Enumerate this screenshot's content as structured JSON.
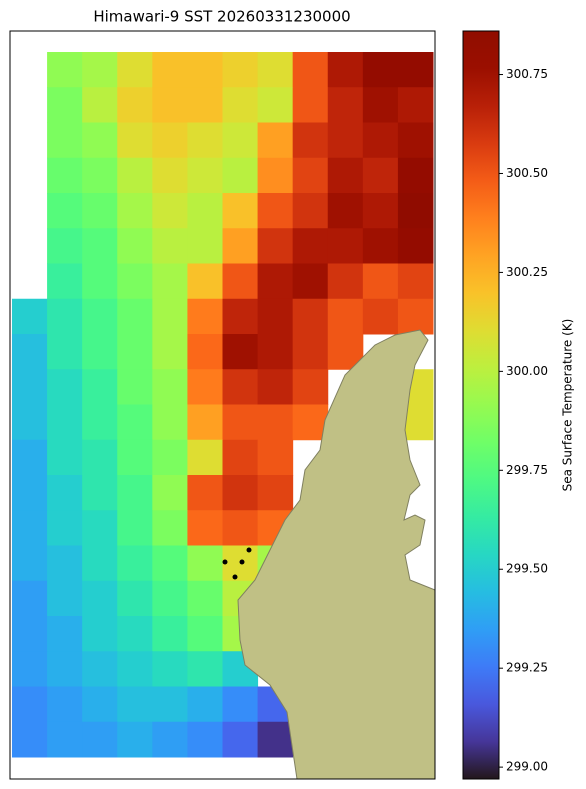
{
  "chart_data": {
    "type": "heatmap",
    "title": "Himawari-9 SST 20260331230000",
    "cmap": "turbo",
    "rows": [
      [
        null,
        299.9,
        299.95,
        300.1,
        300.2,
        300.2,
        300.15,
        300.1,
        300.5,
        300.7,
        300.8,
        300.8
      ],
      [
        null,
        299.85,
        300.0,
        300.15,
        300.2,
        300.2,
        300.1,
        300.05,
        300.5,
        300.65,
        300.75,
        300.7
      ],
      [
        null,
        299.85,
        299.9,
        300.1,
        300.15,
        300.1,
        300.05,
        300.3,
        300.6,
        300.65,
        300.7,
        300.75
      ],
      [
        null,
        299.8,
        299.85,
        300.0,
        300.1,
        300.05,
        300.0,
        300.35,
        300.55,
        300.7,
        300.65,
        300.8
      ],
      [
        null,
        299.75,
        299.8,
        299.95,
        300.05,
        300.0,
        300.2,
        300.5,
        300.6,
        300.75,
        300.7,
        300.85
      ],
      [
        null,
        299.7,
        299.75,
        299.9,
        300.0,
        300.0,
        300.3,
        300.6,
        300.7,
        300.7,
        300.75,
        300.8
      ],
      [
        null,
        299.65,
        299.75,
        299.85,
        299.95,
        300.2,
        300.5,
        300.7,
        300.75,
        300.6,
        300.5,
        300.55
      ],
      [
        299.5,
        299.6,
        299.7,
        299.8,
        299.95,
        300.4,
        300.65,
        300.7,
        300.6,
        300.5,
        300.55,
        300.5
      ],
      [
        299.45,
        299.6,
        299.7,
        299.8,
        299.95,
        300.45,
        300.75,
        300.7,
        300.6,
        300.5,
        null,
        null
      ],
      [
        299.45,
        299.55,
        299.65,
        299.8,
        299.9,
        300.4,
        300.6,
        300.65,
        300.55,
        null,
        null,
        300.1
      ],
      [
        299.45,
        299.55,
        299.65,
        299.75,
        299.9,
        300.3,
        300.5,
        300.5,
        300.45,
        null,
        null,
        300.1
      ],
      [
        299.4,
        299.55,
        299.6,
        299.75,
        299.85,
        300.1,
        300.55,
        300.5,
        null,
        null,
        null,
        null
      ],
      [
        299.4,
        299.5,
        299.6,
        299.7,
        299.9,
        300.5,
        300.6,
        300.55,
        null,
        null,
        null,
        null
      ],
      [
        299.4,
        299.5,
        299.55,
        299.7,
        299.85,
        300.45,
        300.5,
        300.45,
        null,
        null,
        null,
        null
      ],
      [
        299.4,
        299.45,
        299.55,
        299.65,
        299.75,
        299.9,
        300.1,
        299.95,
        null,
        null,
        null,
        null
      ],
      [
        299.35,
        299.45,
        299.5,
        299.6,
        299.7,
        299.8,
        300.0,
        null,
        null,
        null,
        null,
        null
      ],
      [
        299.35,
        299.4,
        299.5,
        299.55,
        299.65,
        299.75,
        299.95,
        null,
        null,
        null,
        null,
        null
      ],
      [
        299.35,
        299.4,
        299.45,
        299.5,
        299.55,
        299.6,
        299.5,
        null,
        null,
        null,
        null,
        null
      ],
      [
        299.3,
        299.35,
        299.4,
        299.45,
        299.45,
        299.4,
        299.3,
        299.2,
        null,
        null,
        null,
        null
      ],
      [
        299.3,
        299.35,
        299.35,
        299.4,
        299.35,
        299.3,
        299.2,
        299.05,
        null,
        null,
        null,
        null
      ]
    ],
    "colorbar": {
      "label": "Sea Surface Temperature (K)",
      "lim": [
        298.97,
        300.86
      ],
      "ticks": [
        {
          "value": 299.0,
          "label": "299.00"
        },
        299.25,
        {
          "value": 299.5,
          "label": "299.50"
        },
        299.75,
        {
          "value": 300.0,
          "label": "300.00"
        },
        300.25,
        {
          "value": 300.5,
          "label": "300.50"
        },
        300.75
      ]
    }
  }
}
